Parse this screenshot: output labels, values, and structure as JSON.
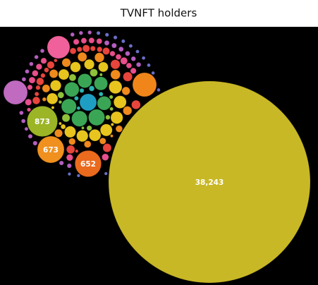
{
  "chart_data": {
    "type": "bubble",
    "title": "TVNFT holders",
    "palette": [
      "#1f9ec4",
      "#2bb5b0",
      "#3aa655",
      "#8fc23a",
      "#e8c51e",
      "#f08a1d",
      "#e8453c",
      "#e84f8c",
      "#b55fc0",
      "#6b6fc9"
    ],
    "bubbles": [
      {
        "value": 38243,
        "label": "38,243",
        "color": "#c9b826"
      },
      {
        "value": 873,
        "label": "873",
        "color": "#9bb526"
      },
      {
        "value": 673,
        "label": "673",
        "color": "#f0901e"
      },
      {
        "value": 652,
        "label": "652",
        "color": "#ea6a1e"
      },
      {
        "value": 480,
        "color": "#f0609a"
      },
      {
        "value": 540,
        "color": "#c06ac0"
      },
      {
        "value": 540,
        "color": "#f0861a"
      },
      {
        "value": 269
      },
      {
        "value": 250
      },
      {
        "value": 230
      },
      {
        "value": 210
      },
      {
        "value": 200
      },
      {
        "value": 187
      },
      {
        "value": 180
      },
      {
        "value": 170
      },
      {
        "value": 160
      },
      {
        "value": 150
      },
      {
        "value": 140
      },
      {
        "value": 135
      },
      {
        "value": 130
      },
      {
        "value": 125
      },
      {
        "value": 120
      },
      {
        "value": 115
      },
      {
        "value": 110
      },
      {
        "value": 105
      },
      {
        "value": 100
      },
      {
        "value": 95
      },
      {
        "value": 90
      },
      {
        "value": 88
      },
      {
        "value": 85
      },
      {
        "value": 82
      },
      {
        "value": 80
      },
      {
        "value": 78
      },
      {
        "value": 75
      },
      {
        "value": 72
      },
      {
        "value": 70
      },
      {
        "value": 68
      },
      {
        "value": 67
      },
      {
        "value": 65
      },
      {
        "value": 62
      },
      {
        "value": 60
      },
      {
        "value": 58
      },
      {
        "value": 56
      },
      {
        "value": 55
      },
      {
        "value": 53
      },
      {
        "value": 52
      },
      {
        "value": 50
      },
      {
        "value": 49
      },
      {
        "value": 48
      },
      {
        "value": 47
      },
      {
        "value": 46
      },
      {
        "value": 45
      },
      {
        "value": 44
      },
      {
        "value": 43
      },
      {
        "value": 42
      },
      {
        "value": 41
      },
      {
        "value": 40
      },
      {
        "value": 39
      },
      {
        "value": 38
      },
      {
        "value": 37
      },
      {
        "value": 36
      },
      {
        "value": 35
      },
      {
        "value": 34
      },
      {
        "value": 33
      },
      {
        "value": 32
      },
      {
        "value": 31
      },
      {
        "value": 30
      },
      {
        "value": 30
      },
      {
        "value": 29
      },
      {
        "value": 28
      },
      {
        "value": 28
      },
      {
        "value": 27
      },
      {
        "value": 26
      },
      {
        "value": 26
      },
      {
        "value": 25
      },
      {
        "value": 25
      },
      {
        "value": 24
      },
      {
        "value": 24
      },
      {
        "value": 23
      },
      {
        "value": 23
      },
      {
        "value": 22
      },
      {
        "value": 22
      },
      {
        "value": 21
      },
      {
        "value": 21
      },
      {
        "value": 20
      },
      {
        "value": 20
      },
      {
        "value": 20
      },
      {
        "value": 19
      },
      {
        "value": 19
      },
      {
        "value": 19
      },
      {
        "value": 18
      },
      {
        "value": 18
      },
      {
        "value": 18
      },
      {
        "value": 17
      },
      {
        "value": 17
      },
      {
        "value": 17
      },
      {
        "value": 17
      },
      {
        "value": 16
      },
      {
        "value": 16
      },
      {
        "value": 16
      },
      {
        "value": 16
      },
      {
        "value": 15
      },
      {
        "value": 15
      },
      {
        "value": 15
      },
      {
        "value": 15
      },
      {
        "value": 14
      },
      {
        "value": 14
      },
      {
        "value": 14
      },
      {
        "value": 14
      },
      {
        "value": 13
      },
      {
        "value": 13
      },
      {
        "value": 13
      },
      {
        "value": 13
      },
      {
        "value": 12
      },
      {
        "value": 12
      },
      {
        "value": 12
      },
      {
        "value": 12
      },
      {
        "value": 11
      },
      {
        "value": 11
      },
      {
        "value": 11
      },
      {
        "value": 11
      },
      {
        "value": 10
      },
      {
        "value": 10
      },
      {
        "value": 10
      },
      {
        "value": 10
      },
      {
        "value": 9
      },
      {
        "value": 9
      },
      {
        "value": 9
      },
      {
        "value": 9
      },
      {
        "value": 8
      },
      {
        "value": 8
      },
      {
        "value": 8
      },
      {
        "value": 8
      },
      {
        "value": 7
      },
      {
        "value": 7
      }
    ]
  }
}
